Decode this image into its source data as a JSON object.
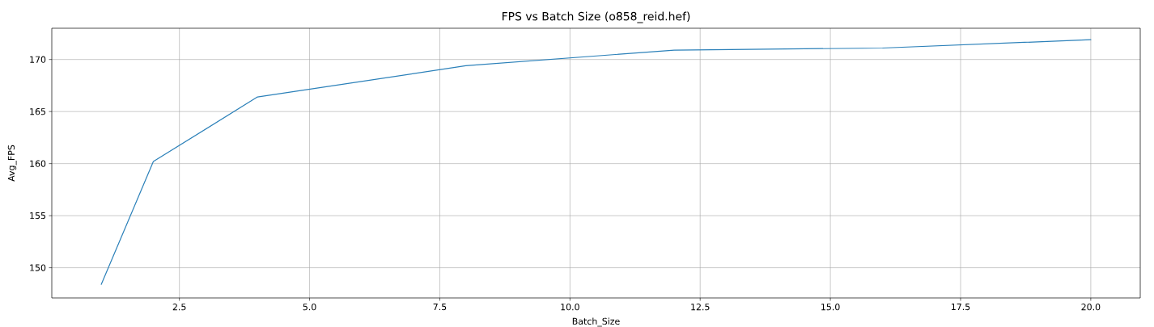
{
  "chart_data": {
    "type": "line",
    "title": "FPS vs Batch Size (o858_reid.hef)",
    "xlabel": "Batch_Size",
    "ylabel": "Avg_FPS",
    "x": [
      1,
      2,
      4,
      8,
      12,
      16,
      20
    ],
    "values": [
      148.4,
      160.2,
      166.4,
      169.4,
      170.9,
      171.1,
      171.9
    ],
    "color": "#2b80b9",
    "xlim": [
      0.05,
      20.95
    ],
    "ylim": [
      147.1,
      173.0
    ],
    "xticks": [
      2.5,
      {
        "value": 5,
        "label": "5.0"
      },
      7.5,
      {
        "value": 10,
        "label": "10.0"
      },
      12.5,
      {
        "value": 15,
        "label": "15.0"
      },
      17.5,
      {
        "value": 20,
        "label": "20.0"
      }
    ],
    "yticks": [
      150,
      155,
      160,
      165,
      170
    ],
    "grid": true,
    "line_style": "solid"
  }
}
